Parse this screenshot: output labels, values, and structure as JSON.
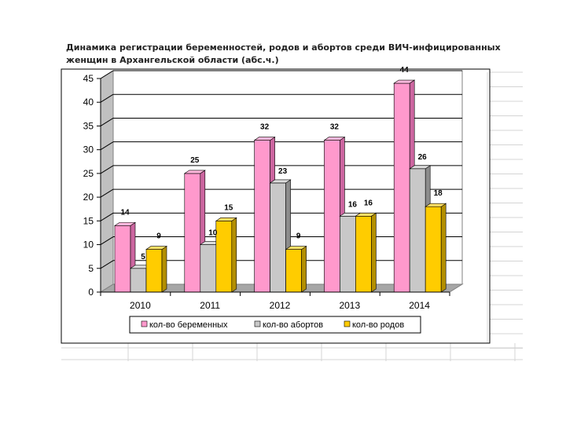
{
  "chart_data": {
    "type": "bar",
    "title": [
      "Динамика регистрации беременностей, родов и абортов среди ВИЧ-инфицированных",
      "женщин в Архангельской области (абс.ч.)"
    ],
    "categories": [
      "2010",
      "2011",
      "2012",
      "2013",
      "2014"
    ],
    "series": [
      {
        "name": "кол-во беременных",
        "values": [
          14,
          25,
          32,
          32,
          44
        ],
        "color": "#ff99cc",
        "side": "#cc66a0",
        "top": "#ffb8dd"
      },
      {
        "name": "кол-во абортов",
        "values": [
          5,
          10,
          23,
          16,
          26
        ],
        "color": "#c8c8c8",
        "side": "#8c8c8c",
        "top": "#dedede"
      },
      {
        "name": "кол-во родов",
        "values": [
          9,
          15,
          9,
          16,
          18
        ],
        "color": "#ffcc00",
        "side": "#b38f00",
        "top": "#ffe066"
      }
    ],
    "ylim": [
      0,
      45
    ],
    "yticks": [
      0,
      5,
      10,
      15,
      20,
      25,
      30,
      35,
      40,
      45
    ],
    "grid": true,
    "legend": "bottom"
  }
}
